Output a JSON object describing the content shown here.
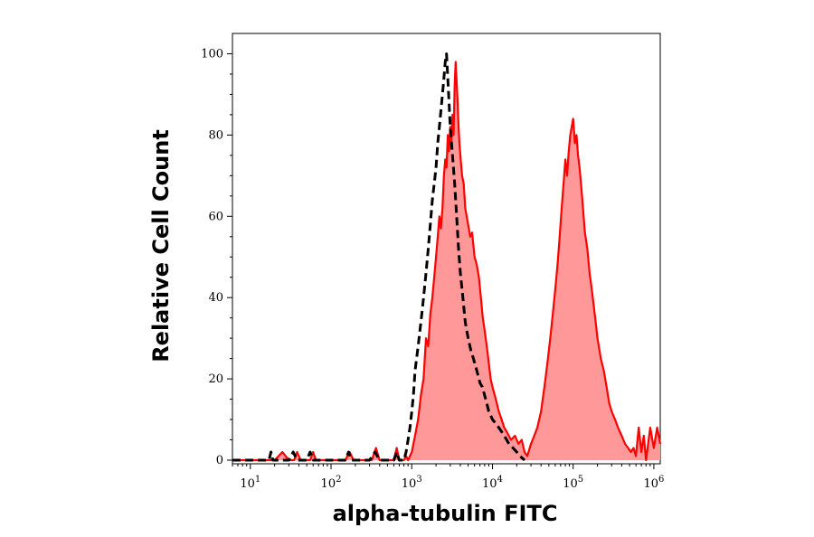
{
  "chart_data": {
    "type": "area",
    "xlabel": "alpha-tubulin FITC",
    "ylabel": "Relative Cell Count",
    "x_scale": "log",
    "xlim": [
      6,
      1200000.0
    ],
    "ylim": [
      0,
      105
    ],
    "y_ticks": [
      0,
      20,
      40,
      60,
      80,
      100
    ],
    "y_tick_labels": [
      "0",
      "20",
      "40",
      "60",
      "80",
      "100"
    ],
    "x_ticks": [
      10,
      100,
      1000,
      10000,
      100000,
      1000000
    ],
    "x_tick_labels": [
      {
        "base": "10",
        "exp": "1"
      },
      {
        "base": "10",
        "exp": "2"
      },
      {
        "base": "10",
        "exp": "3"
      },
      {
        "base": "10",
        "exp": "4"
      },
      {
        "base": "10",
        "exp": "5"
      },
      {
        "base": "10",
        "exp": "6"
      }
    ],
    "grid": false,
    "legend": "none",
    "series": [
      {
        "style": "filled-solid",
        "line_color": "#ff0000",
        "fill_color": "#ff9999",
        "points": [
          [
            6,
            0
          ],
          [
            20,
            0
          ],
          [
            25,
            2
          ],
          [
            30,
            0
          ],
          [
            35,
            0
          ],
          [
            38,
            2
          ],
          [
            42,
            0
          ],
          [
            55,
            0
          ],
          [
            60,
            2
          ],
          [
            65,
            0
          ],
          [
            150,
            0
          ],
          [
            170,
            2
          ],
          [
            190,
            0
          ],
          [
            320,
            0
          ],
          [
            360,
            3
          ],
          [
            400,
            0
          ],
          [
            600,
            0
          ],
          [
            650,
            3
          ],
          [
            700,
            0
          ],
          [
            800,
            0
          ],
          [
            850,
            1
          ],
          [
            900,
            0
          ],
          [
            1000,
            2
          ],
          [
            1100,
            6
          ],
          [
            1200,
            10
          ],
          [
            1300,
            16
          ],
          [
            1400,
            20
          ],
          [
            1500,
            30
          ],
          [
            1600,
            28
          ],
          [
            1700,
            36
          ],
          [
            1800,
            40
          ],
          [
            1900,
            45
          ],
          [
            2000,
            50
          ],
          [
            2100,
            55
          ],
          [
            2200,
            60
          ],
          [
            2300,
            57
          ],
          [
            2400,
            62
          ],
          [
            2500,
            70
          ],
          [
            2600,
            74
          ],
          [
            2700,
            72
          ],
          [
            2800,
            80
          ],
          [
            2900,
            76
          ],
          [
            3000,
            82
          ],
          [
            3100,
            78
          ],
          [
            3200,
            85
          ],
          [
            3300,
            80
          ],
          [
            3400,
            92
          ],
          [
            3500,
            98
          ],
          [
            3600,
            93
          ],
          [
            3700,
            88
          ],
          [
            3800,
            82
          ],
          [
            3900,
            78
          ],
          [
            4000,
            75
          ],
          [
            4200,
            70
          ],
          [
            4400,
            68
          ],
          [
            4600,
            62
          ],
          [
            4800,
            60
          ],
          [
            5000,
            58
          ],
          [
            5300,
            55
          ],
          [
            5600,
            56
          ],
          [
            6000,
            50
          ],
          [
            6400,
            48
          ],
          [
            6800,
            45
          ],
          [
            7200,
            40
          ],
          [
            7600,
            35
          ],
          [
            8000,
            32
          ],
          [
            8500,
            28
          ],
          [
            9000,
            24
          ],
          [
            9500,
            20
          ],
          [
            10000,
            18
          ],
          [
            11000,
            15
          ],
          [
            12000,
            12
          ],
          [
            13000,
            10
          ],
          [
            14000,
            8
          ],
          [
            15000,
            7
          ],
          [
            17000,
            5
          ],
          [
            19000,
            6
          ],
          [
            21000,
            4
          ],
          [
            23000,
            5
          ],
          [
            25000,
            2
          ],
          [
            27000,
            1
          ],
          [
            30000,
            4
          ],
          [
            33000,
            6
          ],
          [
            36000,
            8
          ],
          [
            40000,
            12
          ],
          [
            44000,
            18
          ],
          [
            48000,
            24
          ],
          [
            52000,
            30
          ],
          [
            56000,
            36
          ],
          [
            60000,
            42
          ],
          [
            64000,
            48
          ],
          [
            68000,
            55
          ],
          [
            72000,
            62
          ],
          [
            76000,
            68
          ],
          [
            80000,
            74
          ],
          [
            84000,
            70
          ],
          [
            88000,
            76
          ],
          [
            92000,
            80
          ],
          [
            96000,
            82
          ],
          [
            100000,
            84
          ],
          [
            105000,
            78
          ],
          [
            110000,
            80
          ],
          [
            115000,
            75
          ],
          [
            120000,
            72
          ],
          [
            125000,
            68
          ],
          [
            130000,
            64
          ],
          [
            135000,
            60
          ],
          [
            140000,
            56
          ],
          [
            150000,
            52
          ],
          [
            160000,
            46
          ],
          [
            170000,
            42
          ],
          [
            180000,
            38
          ],
          [
            190000,
            34
          ],
          [
            200000,
            30
          ],
          [
            220000,
            25
          ],
          [
            240000,
            22
          ],
          [
            260000,
            18
          ],
          [
            280000,
            14
          ],
          [
            300000,
            12
          ],
          [
            330000,
            10
          ],
          [
            360000,
            8
          ],
          [
            400000,
            6
          ],
          [
            440000,
            4
          ],
          [
            480000,
            3
          ],
          [
            520000,
            2
          ],
          [
            560000,
            3
          ],
          [
            600000,
            1
          ],
          [
            650000,
            8
          ],
          [
            700000,
            2
          ],
          [
            750000,
            6
          ],
          [
            800000,
            0
          ],
          [
            900000,
            8
          ],
          [
            1000000,
            3
          ],
          [
            1100000,
            8
          ],
          [
            1200000,
            4
          ]
        ]
      },
      {
        "style": "dashed",
        "line_color": "#000000",
        "points": [
          [
            6,
            0
          ],
          [
            17,
            0
          ],
          [
            18,
            2
          ],
          [
            19,
            0
          ],
          [
            30,
            0
          ],
          [
            34,
            2
          ],
          [
            38,
            0
          ],
          [
            50,
            0
          ],
          [
            55,
            2
          ],
          [
            60,
            0
          ],
          [
            150,
            0
          ],
          [
            165,
            2
          ],
          [
            180,
            0
          ],
          [
            300,
            0
          ],
          [
            350,
            2
          ],
          [
            400,
            0
          ],
          [
            600,
            0
          ],
          [
            650,
            2
          ],
          [
            700,
            0
          ],
          [
            800,
            0
          ],
          [
            850,
            2
          ],
          [
            900,
            5
          ],
          [
            950,
            8
          ],
          [
            1000,
            12
          ],
          [
            1050,
            16
          ],
          [
            1100,
            22
          ],
          [
            1200,
            28
          ],
          [
            1300,
            34
          ],
          [
            1400,
            40
          ],
          [
            1500,
            46
          ],
          [
            1600,
            52
          ],
          [
            1700,
            58
          ],
          [
            1800,
            64
          ],
          [
            1900,
            68
          ],
          [
            2000,
            72
          ],
          [
            2100,
            78
          ],
          [
            2200,
            82
          ],
          [
            2300,
            86
          ],
          [
            2400,
            90
          ],
          [
            2500,
            94
          ],
          [
            2600,
            98
          ],
          [
            2700,
            100
          ],
          [
            2800,
            94
          ],
          [
            2900,
            88
          ],
          [
            3000,
            82
          ],
          [
            3200,
            75
          ],
          [
            3400,
            68
          ],
          [
            3600,
            60
          ],
          [
            3800,
            52
          ],
          [
            4000,
            46
          ],
          [
            4300,
            40
          ],
          [
            4600,
            34
          ],
          [
            5000,
            30
          ],
          [
            5400,
            27
          ],
          [
            5800,
            25
          ],
          [
            6200,
            23
          ],
          [
            6600,
            21
          ],
          [
            7000,
            19
          ],
          [
            7500,
            18
          ],
          [
            8000,
            16
          ],
          [
            8500,
            14
          ],
          [
            9000,
            12
          ],
          [
            9500,
            11
          ],
          [
            10000,
            10
          ],
          [
            11000,
            9
          ],
          [
            12000,
            8
          ],
          [
            13000,
            7
          ],
          [
            14000,
            6
          ],
          [
            15000,
            5
          ],
          [
            16000,
            4
          ],
          [
            18000,
            3
          ],
          [
            20000,
            2
          ],
          [
            22000,
            1
          ],
          [
            25000,
            0
          ]
        ]
      }
    ]
  }
}
